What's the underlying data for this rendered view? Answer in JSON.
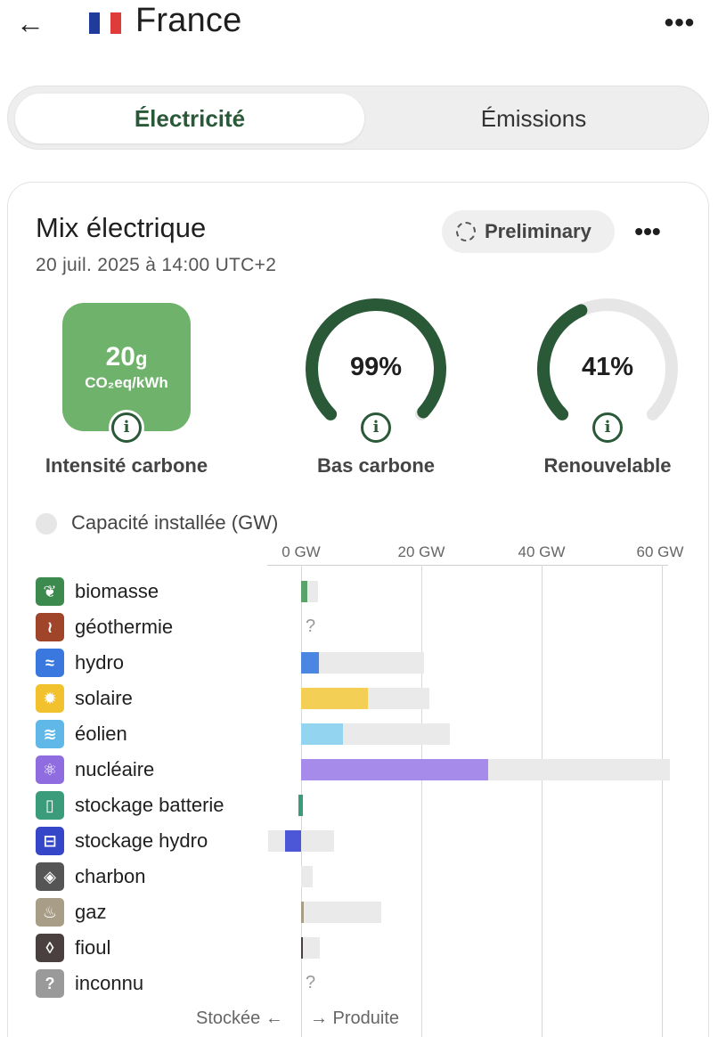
{
  "header": {
    "back_icon": "arrow-left-icon",
    "flag_colors": [
      "#1f3c9c",
      "#ffffff",
      "#e03b3b"
    ],
    "title": "France",
    "more_icon": "more-horizontal-icon"
  },
  "tabs": [
    {
      "label": "Électricité",
      "active": true
    },
    {
      "label": "Émissions",
      "active": false
    }
  ],
  "card": {
    "title": "Mix électrique",
    "date": "20 juil. 2025 à 14:00 UTC+2",
    "status_pill": "Preliminary",
    "more_icon": "more-horizontal-icon"
  },
  "metrics": {
    "carbon_intensity": {
      "value": "20",
      "unit_suffix": "g",
      "unit": "CO₂eq/kWh",
      "label": "Intensité carbone",
      "color": "#6fb26b"
    },
    "low_carbon": {
      "percent": 99,
      "display": "99%",
      "label": "Bas carbone"
    },
    "renewable": {
      "percent": 41,
      "display": "41%",
      "label": "Renouvelable"
    },
    "gauge_color": "#2a5938",
    "gauge_track": "#e6e6e6"
  },
  "capacity_toggle": {
    "label": "Capacité installée (GW)",
    "on": false
  },
  "chart_data": {
    "type": "bar",
    "xunit": "GW",
    "ticks": [
      "0 GW",
      "20 GW",
      "40 GW",
      "60 GW"
    ],
    "xlim": [
      -5.5,
      61
    ],
    "rows": [
      {
        "name": "biomasse",
        "icon": "sprout-icon",
        "icon_glyph": "❦",
        "icon_color": "#3d8a4f",
        "produced": 1.0,
        "stored": 0,
        "capacity": 2.8,
        "bar_color": "#5aa36a",
        "unknown": false
      },
      {
        "name": "géothermie",
        "icon": "geothermal-icon",
        "icon_glyph": "≀",
        "icon_color": "#a0442a",
        "produced": 0,
        "stored": 0,
        "capacity": 0,
        "bar_color": "#a0442a",
        "unknown": true
      },
      {
        "name": "hydro",
        "icon": "water-icon",
        "icon_glyph": "≈",
        "icon_color": "#3a78e0",
        "produced": 2.9,
        "stored": 0,
        "capacity": 20.5,
        "bar_color": "#4a86e2",
        "unknown": false
      },
      {
        "name": "solaire",
        "icon": "sun-icon",
        "icon_glyph": "✹",
        "icon_color": "#f2c12e",
        "produced": 11.1,
        "stored": 0,
        "capacity": 21.3,
        "bar_color": "#f3cf55",
        "unknown": false
      },
      {
        "name": "éolien",
        "icon": "wind-icon",
        "icon_glyph": "≋",
        "icon_color": "#5fb8e8",
        "produced": 7.0,
        "stored": 0,
        "capacity": 24.7,
        "bar_color": "#93d4f1",
        "unknown": false
      },
      {
        "name": "nucléaire",
        "icon": "atom-icon",
        "icon_glyph": "⚛",
        "icon_color": "#8f6ce0",
        "produced": 31.1,
        "stored": 0,
        "capacity": 61.4,
        "bar_color": "#a78bea",
        "unknown": false
      },
      {
        "name": "stockage batterie",
        "icon": "battery-icon",
        "icon_glyph": "▯",
        "icon_color": "#3a9c7a",
        "produced": 0.1,
        "stored": -0.4,
        "capacity": 0.2,
        "bar_color": "#3a9c7a",
        "unknown": false
      },
      {
        "name": "stockage hydro",
        "icon": "pumped-storage-icon",
        "icon_glyph": "⊟",
        "icon_color": "#3646c8",
        "produced": 0,
        "stored": -2.7,
        "capacity": 5.5,
        "bar_color": "#4b57d6",
        "unknown": false
      },
      {
        "name": "charbon",
        "icon": "coal-icon",
        "icon_glyph": "◈",
        "icon_color": "#555555",
        "produced": 0,
        "stored": 0,
        "capacity": 1.9,
        "bar_color": "#555555",
        "unknown": false
      },
      {
        "name": "gaz",
        "icon": "gas-flame-icon",
        "icon_glyph": "♨",
        "icon_color": "#a89d86",
        "produced": 0.4,
        "stored": 0,
        "capacity": 13.3,
        "bar_color": "#a89d86",
        "unknown": false
      },
      {
        "name": "fioul",
        "icon": "oil-drop-icon",
        "icon_glyph": "◊",
        "icon_color": "#4a4040",
        "produced": 0.1,
        "stored": 0,
        "capacity": 3.1,
        "bar_color": "#4a4040",
        "unknown": false
      },
      {
        "name": "inconnu",
        "icon": "question-icon",
        "icon_glyph": "?",
        "icon_color": "#9a9a9a",
        "produced": 0,
        "stored": 0,
        "capacity": 0,
        "bar_color": "#9a9a9a",
        "unknown": true
      }
    ],
    "footer_left": "Stockée ←",
    "footer_right": "→ Produite",
    "capacity_color": "#eaeaea"
  }
}
